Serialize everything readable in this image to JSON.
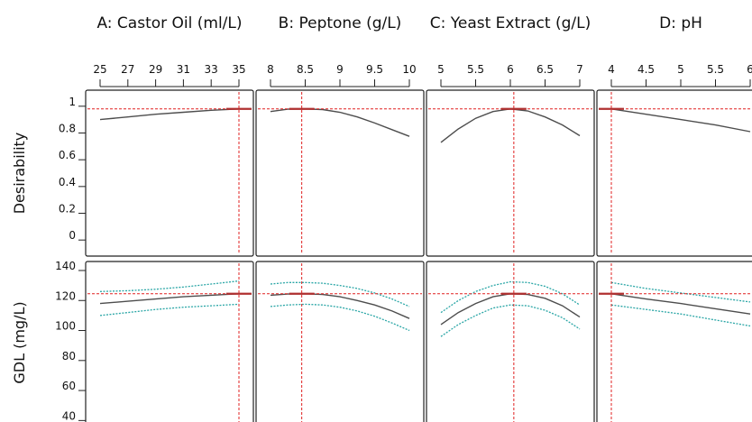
{
  "chart_data": {
    "type": "line",
    "columns": [
      {
        "title": "A: Castor Oil (ml/L)",
        "ticks": [
          25,
          27,
          29,
          31,
          33,
          35
        ],
        "tick_labels": [
          "25",
          "27",
          "29",
          "31",
          "33",
          "35"
        ],
        "xlim": [
          25,
          35
        ],
        "setting": 35
      },
      {
        "title": "B: Peptone (g/L)",
        "ticks": [
          8,
          8.5,
          9,
          9.5,
          10
        ],
        "tick_labels": [
          "8",
          "8.5",
          "9",
          "9.5",
          "10"
        ],
        "xlim": [
          8,
          10
        ],
        "setting": 8.45
      },
      {
        "title": "C: Yeast Extract (g/L)",
        "ticks": [
          5,
          5.5,
          6,
          6.5,
          7
        ],
        "tick_labels": [
          "5",
          "5.5",
          "6",
          "6.5",
          "7"
        ],
        "xlim": [
          5,
          7
        ],
        "setting": 6.05
      },
      {
        "title": "D: pH",
        "ticks": [
          4,
          4.5,
          5,
          5.5,
          6
        ],
        "tick_labels": [
          "4",
          "4.5",
          "5",
          "5.5",
          "6"
        ],
        "xlim": [
          4,
          6
        ],
        "setting": 4
      }
    ],
    "rows": [
      {
        "label": "Desirability",
        "yticks": [
          0,
          0.2,
          0.4,
          0.6,
          0.8,
          1
        ],
        "ytick_labels": [
          "0",
          "0.2",
          "0.4",
          "0.6",
          "0.8",
          "1"
        ],
        "ylim": [
          -0.12,
          1.12
        ],
        "current_value": 0.98,
        "series": [
          {
            "x": [
              25,
              27,
              29,
              31,
              33,
              35
            ],
            "y": [
              0.9,
              0.92,
              0.94,
              0.955,
              0.97,
              0.98
            ]
          },
          {
            "x": [
              8,
              8.25,
              8.5,
              8.75,
              9,
              9.25,
              9.5,
              9.75,
              10
            ],
            "y": [
              0.96,
              0.978,
              0.98,
              0.975,
              0.955,
              0.92,
              0.875,
              0.825,
              0.775
            ]
          },
          {
            "x": [
              5,
              5.25,
              5.5,
              5.75,
              6,
              6.25,
              6.5,
              6.75,
              7
            ],
            "y": [
              0.73,
              0.83,
              0.91,
              0.96,
              0.98,
              0.965,
              0.92,
              0.86,
              0.78
            ]
          },
          {
            "x": [
              4,
              4.5,
              5,
              5.5,
              6
            ],
            "y": [
              0.98,
              0.94,
              0.9,
              0.86,
              0.81
            ]
          }
        ]
      },
      {
        "label": "GDL (mg/L)",
        "yticks": [
          40,
          60,
          80,
          100,
          120,
          140
        ],
        "ytick_labels": [
          "40",
          "60",
          "80",
          "100",
          "120",
          "140"
        ],
        "ylim": [
          33,
          146
        ],
        "current_value": 124.5,
        "series": [
          {
            "x": [
              25,
              27,
              29,
              31,
              33,
              35
            ],
            "y": [
              118,
              119.5,
              121,
              122.5,
              123.5,
              124.5
            ],
            "upper": [
              126,
              126.5,
              127.5,
              129,
              131,
              133
            ],
            "lower": [
              110,
              112,
              114,
              115.5,
              116.5,
              117.5
            ]
          },
          {
            "x": [
              8,
              8.25,
              8.5,
              8.75,
              9,
              9.25,
              9.5,
              9.75,
              10
            ],
            "y": [
              123.5,
              124.3,
              124.5,
              124,
              122.5,
              120,
              117,
              113,
              108
            ],
            "upper": [
              131,
              132,
              132,
              131.5,
              130,
              128,
              125,
              121,
              116
            ],
            "lower": [
              116,
              117,
              117.5,
              117,
              115.5,
              113,
              109.5,
              105,
              100
            ]
          },
          {
            "x": [
              5,
              5.25,
              5.5,
              5.75,
              6,
              6.25,
              6.5,
              6.75,
              7
            ],
            "y": [
              104,
              112,
              118,
              122.5,
              124.5,
              124,
              121.5,
              116.5,
              109
            ],
            "upper": [
              112,
              120,
              126,
              130,
              132.5,
              132,
              129.5,
              124.5,
              117
            ],
            "lower": [
              96,
              104,
              110,
              115,
              117,
              116.5,
              113.5,
              108.5,
              101
            ]
          },
          {
            "x": [
              4,
              4.5,
              5,
              5.5,
              6
            ],
            "y": [
              124.5,
              121,
              118,
              114.5,
              111
            ],
            "upper": [
              132,
              128,
              125,
              122,
              119
            ],
            "lower": [
              117,
              114,
              111,
              107,
              103
            ]
          }
        ]
      }
    ],
    "colors": {
      "curve": "#4d4d4d",
      "interval": "#2aa6a6",
      "marker": "#e02020",
      "setting_dot": "#b03030",
      "frame": "#222222"
    }
  }
}
